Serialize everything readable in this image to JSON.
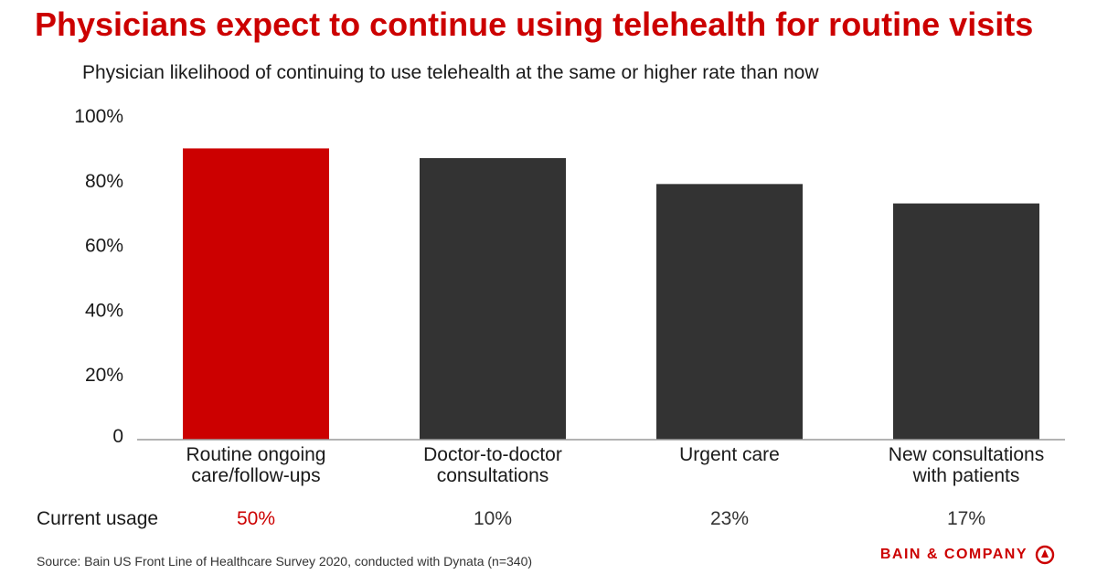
{
  "header": {
    "title": "Physicians expect to continue using telehealth for routine visits",
    "subtitle": "Physician likelihood of continuing to use telehealth at the same or higher rate than now"
  },
  "chart_data": {
    "type": "bar",
    "categories": [
      [
        "Routine ongoing",
        "care/follow-ups"
      ],
      [
        "Doctor-to-doctor",
        "consultations"
      ],
      [
        "Urgent care"
      ],
      [
        "New consultations",
        "with patients"
      ]
    ],
    "values": [
      90,
      87,
      79,
      73
    ],
    "yticks": [
      "0",
      "20%",
      "40%",
      "60%",
      "80%",
      "100%"
    ],
    "ylim": [
      0,
      100
    ],
    "grid": false,
    "bar_colors": [
      "#cc0000",
      "#333333",
      "#333333",
      "#333333"
    ]
  },
  "usage": {
    "label": "Current usage",
    "values": [
      "50%",
      "10%",
      "23%",
      "17%"
    ],
    "colors": [
      "#cc0000",
      "#333333",
      "#333333",
      "#333333"
    ]
  },
  "footer": {
    "source": "Source: Bain US Front Line of Healthcare Survey 2020, conducted with Dynata (n=340)",
    "logo_text": "BAIN & COMPANY",
    "logo_icon": "bain-logo-icon",
    "brand_color": "#cc0000"
  }
}
